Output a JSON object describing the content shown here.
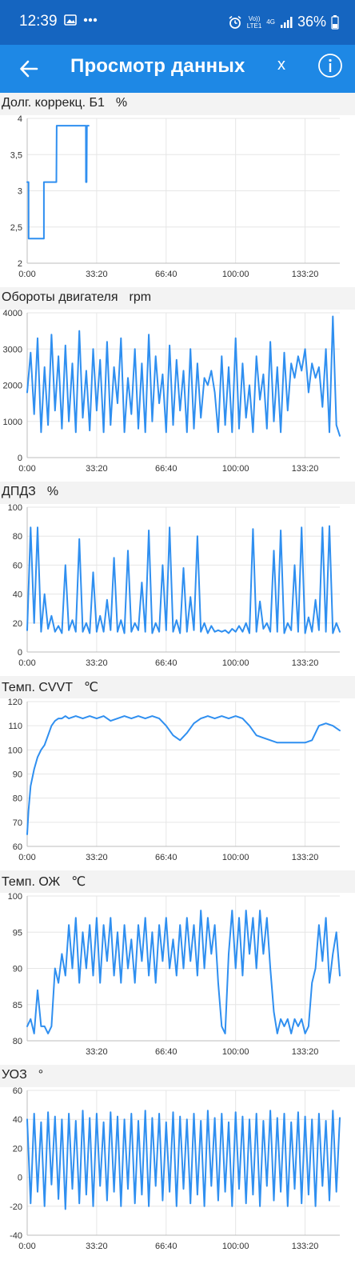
{
  "status_bar": {
    "time": "12:39",
    "network_top": "Vo))",
    "network_bottom": "LTE1",
    "signal_type": "4G",
    "battery": "36%",
    "icons": [
      "image-icon",
      "dots-icon",
      "alarm-icon",
      "signal-icon",
      "battery-icon"
    ]
  },
  "app_bar": {
    "title": "Просмотр данных",
    "close_label": "x",
    "back_icon": "arrow-left-icon",
    "info_icon": "info-icon"
  },
  "colors": {
    "accent": "#1e88e5",
    "series": "#2f8ff0",
    "statusbar": "#1565c0"
  },
  "chart_data": [
    {
      "type": "line",
      "title": "Долг. коррекц. Б1",
      "unit": "%",
      "ylim": [
        2,
        4
      ],
      "xlim": [
        0,
        9000
      ],
      "yticks": [
        "2",
        "2,5",
        "3",
        "3,5",
        "4"
      ],
      "xticks": [
        "0:00",
        "33:20",
        "66:40",
        "100:00",
        "133:20"
      ],
      "grid": true,
      "series": [
        {
          "x": [
            0,
            40,
            42,
            480,
            482,
            840,
            850,
            1690,
            1692,
            1710,
            1720,
            1760,
            1770
          ],
          "y": [
            3.12,
            3.12,
            2.34,
            2.34,
            3.12,
            3.12,
            3.9,
            3.9,
            3.12,
            3.12,
            3.9,
            3.9,
            3.9
          ]
        }
      ]
    },
    {
      "type": "line",
      "title": "Обороты двигателя",
      "unit": "rpm",
      "ylim": [
        0,
        4000
      ],
      "xlim": [
        0,
        9000
      ],
      "yticks": [
        "0",
        "1000",
        "2000",
        "3000",
        "4000"
      ],
      "xticks": [
        "0:00",
        "33:20",
        "66:40",
        "100:00",
        "133:20"
      ],
      "grid": true,
      "series": [
        {
          "x": [
            0,
            100,
            200,
            300,
            400,
            500,
            600,
            700,
            800,
            900,
            1000,
            1100,
            1200,
            1300,
            1400,
            1500,
            1600,
            1700,
            1800,
            1900,
            2000,
            2100,
            2200,
            2300,
            2400,
            2500,
            2600,
            2700,
            2800,
            2900,
            3000,
            3100,
            3200,
            3300,
            3400,
            3500,
            3600,
            3700,
            3800,
            3900,
            4000,
            4100,
            4200,
            4300,
            4400,
            4500,
            4600,
            4700,
            4800,
            4900,
            5000,
            5100,
            5200,
            5300,
            5400,
            5500,
            5600,
            5700,
            5800,
            5900,
            6000,
            6100,
            6200,
            6300,
            6400,
            6500,
            6600,
            6700,
            6800,
            6900,
            7000,
            7100,
            7200,
            7300,
            7400,
            7500,
            7600,
            7700,
            7800,
            7900,
            8000,
            8100,
            8200,
            8300,
            8400,
            8500,
            8600,
            8700,
            8800,
            8900,
            9000
          ],
          "y": [
            1800,
            2900,
            1200,
            3300,
            700,
            2500,
            900,
            3400,
            1300,
            2800,
            800,
            3100,
            1000,
            2600,
            700,
            3500,
            1100,
            2400,
            750,
            3000,
            1300,
            2700,
            700,
            3200,
            900,
            2500,
            1500,
            3300,
            700,
            2200,
            1200,
            3000,
            800,
            2600,
            700,
            3400,
            1000,
            2800,
            1500,
            2300,
            700,
            3100,
            900,
            2700,
            1300,
            2400,
            700,
            3000,
            800,
            2600,
            1100,
            2200,
            2000,
            2400,
            1800,
            700,
            2800,
            900,
            2500,
            700,
            3300,
            800,
            2600,
            1100,
            2000,
            700,
            2800,
            1600,
            2300,
            800,
            3200,
            1000,
            2500,
            700,
            2900,
            1300,
            2600,
            2200,
            2800,
            2400,
            3000,
            1800,
            2600,
            2200,
            2500,
            1400,
            3000,
            700,
            3900,
            900,
            600
          ]
        }
      ]
    },
    {
      "type": "line",
      "title": "ДПДЗ",
      "unit": "%",
      "ylim": [
        0,
        100
      ],
      "xlim": [
        0,
        9000
      ],
      "yticks": [
        "0",
        "20",
        "40",
        "60",
        "80",
        "100"
      ],
      "xticks": [
        "0:00",
        "33:20",
        "66:40",
        "100:00",
        "133:20"
      ],
      "grid": true,
      "series": [
        {
          "x": [
            0,
            100,
            200,
            300,
            400,
            500,
            600,
            700,
            800,
            900,
            1000,
            1100,
            1200,
            1300,
            1400,
            1500,
            1600,
            1700,
            1800,
            1900,
            2000,
            2100,
            2200,
            2300,
            2400,
            2500,
            2600,
            2700,
            2800,
            2900,
            3000,
            3100,
            3200,
            3300,
            3400,
            3500,
            3600,
            3700,
            3800,
            3900,
            4000,
            4100,
            4200,
            4300,
            4400,
            4500,
            4600,
            4700,
            4800,
            4900,
            5000,
            5100,
            5200,
            5300,
            5400,
            5500,
            5600,
            5700,
            5800,
            5900,
            6000,
            6100,
            6200,
            6300,
            6400,
            6500,
            6600,
            6700,
            6800,
            6900,
            7000,
            7100,
            7200,
            7300,
            7400,
            7500,
            7600,
            7700,
            7800,
            7900,
            8000,
            8100,
            8200,
            8300,
            8400,
            8500,
            8600,
            8700,
            8800,
            8900,
            9000
          ],
          "y": [
            15,
            86,
            20,
            86,
            14,
            40,
            16,
            25,
            14,
            18,
            13,
            60,
            15,
            22,
            14,
            78,
            14,
            20,
            13,
            55,
            14,
            25,
            14,
            36,
            15,
            65,
            14,
            22,
            13,
            70,
            14,
            20,
            15,
            48,
            14,
            84,
            13,
            20,
            14,
            60,
            15,
            86,
            14,
            22,
            13,
            58,
            14,
            38,
            15,
            80,
            14,
            20,
            13,
            18,
            14,
            15,
            14,
            15,
            13,
            16,
            14,
            18,
            14,
            20,
            13,
            85,
            14,
            35,
            16,
            20,
            14,
            70,
            14,
            84,
            13,
            20,
            15,
            60,
            14,
            86,
            13,
            24,
            14,
            36,
            15,
            86,
            14,
            87,
            13,
            20,
            14
          ]
        }
      ]
    },
    {
      "type": "line",
      "title": "Темп. CVVT",
      "unit": "℃",
      "ylim": [
        60,
        120
      ],
      "xlim": [
        0,
        9000
      ],
      "yticks": [
        "60",
        "70",
        "80",
        "90",
        "100",
        "110",
        "120"
      ],
      "xticks": [
        "0:00",
        "33:20",
        "66:40",
        "100:00",
        "133:20"
      ],
      "grid": true,
      "series": [
        {
          "x": [
            0,
            40,
            100,
            200,
            300,
            400,
            500,
            600,
            700,
            800,
            900,
            1000,
            1100,
            1200,
            1400,
            1600,
            1800,
            2000,
            2200,
            2400,
            2600,
            2800,
            3000,
            3200,
            3400,
            3600,
            3800,
            4000,
            4200,
            4400,
            4600,
            4800,
            5000,
            5200,
            5400,
            5600,
            5800,
            6000,
            6200,
            6400,
            6600,
            6800,
            7000,
            7200,
            7400,
            7600,
            7800,
            8000,
            8200,
            8400,
            8600,
            8800,
            9000
          ],
          "y": [
            65,
            75,
            85,
            92,
            97,
            100,
            102,
            106,
            110,
            112,
            113,
            113,
            114,
            113,
            114,
            113,
            114,
            113,
            114,
            112,
            113,
            114,
            113,
            114,
            113,
            114,
            113,
            110,
            106,
            104,
            107,
            111,
            113,
            114,
            113,
            114,
            113,
            114,
            113,
            110,
            106,
            105,
            104,
            103,
            103,
            103,
            103,
            103,
            104,
            110,
            111,
            110,
            108
          ]
        }
      ]
    },
    {
      "type": "line",
      "title": "Темп. ОЖ",
      "unit": "℃",
      "ylim": [
        80,
        100
      ],
      "xlim": [
        0,
        9000
      ],
      "yticks": [
        "80",
        "85",
        "90",
        "95",
        "100"
      ],
      "xticks": [
        "33:20",
        "66:40",
        "100:00",
        "133:20"
      ],
      "grid": true,
      "series": [
        {
          "x": [
            0,
            100,
            200,
            300,
            400,
            500,
            600,
            700,
            800,
            900,
            1000,
            1100,
            1200,
            1300,
            1400,
            1500,
            1600,
            1700,
            1800,
            1900,
            2000,
            2100,
            2200,
            2300,
            2400,
            2500,
            2600,
            2700,
            2800,
            2900,
            3000,
            3100,
            3200,
            3300,
            3400,
            3500,
            3600,
            3700,
            3800,
            3900,
            4000,
            4100,
            4200,
            4300,
            4400,
            4500,
            4600,
            4700,
            4800,
            4900,
            5000,
            5100,
            5200,
            5300,
            5400,
            5500,
            5600,
            5700,
            5800,
            5900,
            6000,
            6100,
            6200,
            6300,
            6400,
            6500,
            6600,
            6700,
            6800,
            6900,
            7000,
            7100,
            7200,
            7300,
            7400,
            7500,
            7600,
            7700,
            7800,
            7900,
            8000,
            8100,
            8200,
            8300,
            8400,
            8500,
            8600,
            8700,
            8800,
            8900,
            9000
          ],
          "y": [
            82,
            83,
            81,
            87,
            82,
            82,
            81,
            82,
            90,
            88,
            92,
            89,
            96,
            90,
            97,
            88,
            95,
            90,
            96,
            89,
            97,
            88,
            96,
            91,
            97,
            89,
            95,
            88,
            96,
            90,
            94,
            88,
            96,
            91,
            97,
            89,
            95,
            88,
            96,
            91,
            97,
            90,
            94,
            89,
            96,
            90,
            97,
            91,
            96,
            89,
            98,
            90,
            97,
            92,
            96,
            88,
            82,
            81,
            92,
            98,
            90,
            97,
            89,
            98,
            92,
            97,
            90,
            98,
            92,
            97,
            90,
            84,
            81,
            83,
            82,
            83,
            81,
            83,
            82,
            83,
            81,
            82,
            88,
            90,
            96,
            91,
            97,
            88,
            92,
            95,
            89
          ]
        }
      ]
    },
    {
      "type": "line",
      "title": "УОЗ",
      "unit": "°",
      "ylim": [
        -40,
        60
      ],
      "xlim": [
        0,
        9000
      ],
      "yticks": [
        "-40",
        "-20",
        "0",
        "20",
        "40",
        "60"
      ],
      "xticks": [
        "0:00",
        "33:20",
        "66:40",
        "100:00",
        "133:20"
      ],
      "grid": true,
      "series": [
        {
          "x": [
            0,
            100,
            200,
            300,
            400,
            500,
            600,
            700,
            800,
            900,
            1000,
            1100,
            1200,
            1300,
            1400,
            1500,
            1600,
            1700,
            1800,
            1900,
            2000,
            2100,
            2200,
            2300,
            2400,
            2500,
            2600,
            2700,
            2800,
            2900,
            3000,
            3100,
            3200,
            3300,
            3400,
            3500,
            3600,
            3700,
            3800,
            3900,
            4000,
            4100,
            4200,
            4300,
            4400,
            4500,
            4600,
            4700,
            4800,
            4900,
            5000,
            5100,
            5200,
            5300,
            5400,
            5500,
            5600,
            5700,
            5800,
            5900,
            6000,
            6100,
            6200,
            6300,
            6400,
            6500,
            6600,
            6700,
            6800,
            6900,
            7000,
            7100,
            7200,
            7300,
            7400,
            7500,
            7600,
            7700,
            7800,
            7900,
            8000,
            8100,
            8200,
            8300,
            8400,
            8500,
            8600,
            8700,
            8800,
            8900,
            9000
          ],
          "y": [
            40,
            -18,
            44,
            -10,
            38,
            -20,
            45,
            -5,
            42,
            -15,
            40,
            -22,
            44,
            -8,
            39,
            -18,
            46,
            -12,
            41,
            -20,
            44,
            -6,
            38,
            -16,
            45,
            -10,
            42,
            -20,
            40,
            -8,
            44,
            -18,
            39,
            -12,
            46,
            -20,
            41,
            -6,
            44,
            -16,
            38,
            -10,
            45,
            -20,
            42,
            -8,
            40,
            -18,
            44,
            -12,
            39,
            -20,
            46,
            -6,
            41,
            -16,
            44,
            -10,
            38,
            -20,
            45,
            -8,
            42,
            -18,
            40,
            -12,
            44,
            -20,
            39,
            -6,
            46,
            -16,
            41,
            -10,
            44,
            -20,
            38,
            -8,
            45,
            -18,
            42,
            -12,
            40,
            -20,
            44,
            -6,
            39,
            -16,
            46,
            -10,
            41
          ]
        }
      ]
    }
  ]
}
